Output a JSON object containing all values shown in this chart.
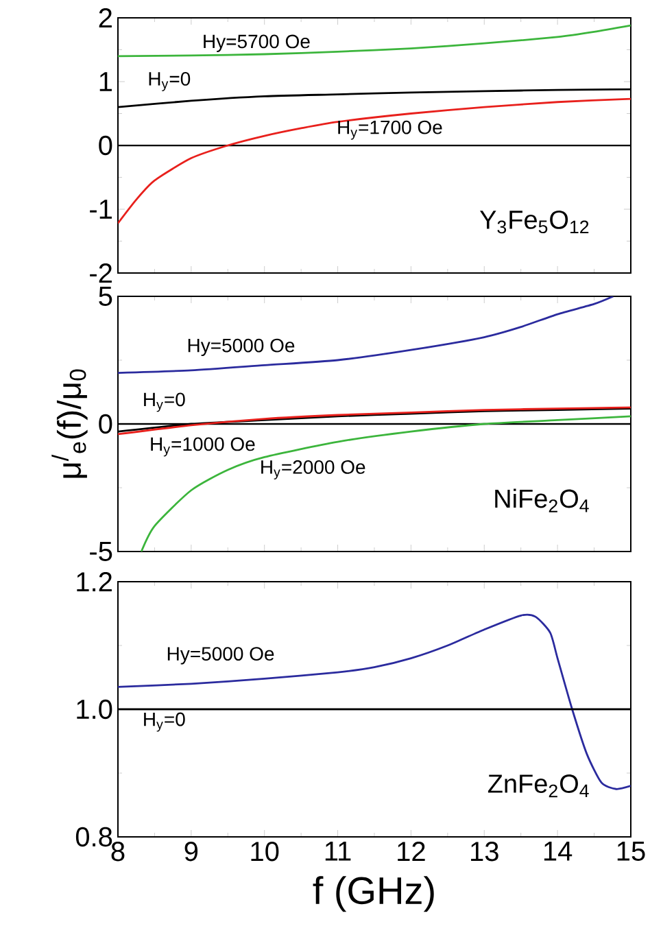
{
  "chart_data": [
    {
      "type": "line",
      "xlim": [
        8,
        15
      ],
      "xticks": [
        8,
        9,
        10,
        11,
        12,
        13,
        14,
        15
      ],
      "ylim": [
        -2,
        2
      ],
      "yticks": [
        -2,
        -1,
        0,
        1,
        2
      ],
      "tick_labels": "y",
      "series": [
        {
          "name": "Hy=5700 Oe",
          "color": "#3cb53c",
          "x": [
            8,
            9,
            10,
            11,
            12,
            13,
            14,
            14.5,
            15
          ],
          "values": [
            1.4,
            1.41,
            1.43,
            1.47,
            1.52,
            1.6,
            1.7,
            1.78,
            1.88
          ]
        },
        {
          "name": "H$_{y}$=0",
          "color": "#000000",
          "x": [
            8,
            9,
            10,
            11,
            12,
            13,
            14,
            15
          ],
          "values": [
            0.6,
            0.7,
            0.77,
            0.8,
            0.83,
            0.85,
            0.87,
            0.88
          ]
        },
        {
          "name": "H$_{y}$=1700 Oe",
          "color": "#e8201c",
          "x": [
            8,
            8.25,
            8.5,
            9,
            9.5,
            10,
            10.5,
            11,
            12,
            13,
            14,
            15
          ],
          "values": [
            -1.22,
            -0.85,
            -0.55,
            -0.2,
            0.0,
            0.15,
            0.27,
            0.37,
            0.5,
            0.6,
            0.68,
            0.73
          ]
        }
      ],
      "ref_lines": [
        {
          "axis": "y",
          "value": 0,
          "color": "#000000"
        }
      ],
      "annotations": [
        "Y$_{3}$Fe$_{5}$O$_{12}$"
      ]
    },
    {
      "type": "line",
      "xlim": [
        8,
        15
      ],
      "xticks": [
        8,
        9,
        10,
        11,
        12,
        13,
        14,
        15
      ],
      "ylim": [
        -5,
        5
      ],
      "yticks": [
        -5,
        0,
        5
      ],
      "tick_labels": "y",
      "ylabel": "μ$^{/}$$_{e}$(f)/μ$_{0}$",
      "series": [
        {
          "name": "Hy=5000 Oe",
          "color": "#2b2b9e",
          "x": [
            8,
            9,
            10,
            11,
            12,
            13,
            13.5,
            14,
            14.5,
            14.76
          ],
          "values": [
            2.0,
            2.1,
            2.3,
            2.5,
            2.9,
            3.4,
            3.8,
            4.3,
            4.7,
            5.0
          ]
        },
        {
          "name": "H$_{y}$=0",
          "color": "#000000",
          "x": [
            8,
            9,
            10,
            11,
            12,
            13,
            14,
            15
          ],
          "values": [
            -0.3,
            0.0,
            0.15,
            0.3,
            0.4,
            0.5,
            0.55,
            0.6
          ]
        },
        {
          "name": "H$_{y}$=1000 Oe",
          "color": "#e8201c",
          "x": [
            8,
            9,
            10,
            11,
            12,
            13,
            14,
            15
          ],
          "values": [
            -0.4,
            -0.05,
            0.2,
            0.35,
            0.45,
            0.55,
            0.6,
            0.65
          ]
        },
        {
          "name": "H$_{y}$=2000 Oe",
          "color": "#3cb53c",
          "x": [
            8.32,
            8.5,
            9,
            9.5,
            10,
            11,
            12,
            13,
            14,
            15
          ],
          "values": [
            -5.0,
            -4.0,
            -2.6,
            -1.8,
            -1.3,
            -0.7,
            -0.3,
            0.0,
            0.15,
            0.3
          ]
        }
      ],
      "ref_lines": [
        {
          "axis": "y",
          "value": 0,
          "color": "#000000"
        }
      ],
      "annotations": [
        "NiFe$_{2}$O$_{4}$"
      ]
    },
    {
      "type": "line",
      "xlim": [
        8,
        15
      ],
      "xticks": [
        8,
        9,
        10,
        11,
        12,
        13,
        14,
        15
      ],
      "ylim": [
        0.8,
        1.2
      ],
      "yticks": [
        {
          "value": 0.8,
          "label": "0.8"
        },
        {
          "value": 1.0,
          "label": "1.0"
        },
        {
          "value": 1.2,
          "label": "1.2"
        }
      ],
      "xlabel": "f (GHz)",
      "series": [
        {
          "name": "Hy=5000 Oe",
          "color": "#2b2b9e",
          "x": [
            8,
            9,
            10,
            11,
            11.5,
            12,
            12.5,
            13,
            13.5,
            13.7,
            13.9,
            14.0,
            14.2,
            14.4,
            14.6,
            14.8,
            15
          ],
          "values": [
            1.035,
            1.04,
            1.048,
            1.058,
            1.066,
            1.08,
            1.1,
            1.125,
            1.147,
            1.145,
            1.12,
            1.08,
            1.0,
            0.93,
            0.885,
            0.875,
            0.88
          ]
        },
        {
          "name": "H$_{y}$=0",
          "color": "#000000",
          "x": [
            8,
            15
          ],
          "values": [
            1.0,
            1.0
          ]
        }
      ],
      "annotations": [
        "ZnFe$_{2}$O$_{4}$"
      ]
    }
  ]
}
